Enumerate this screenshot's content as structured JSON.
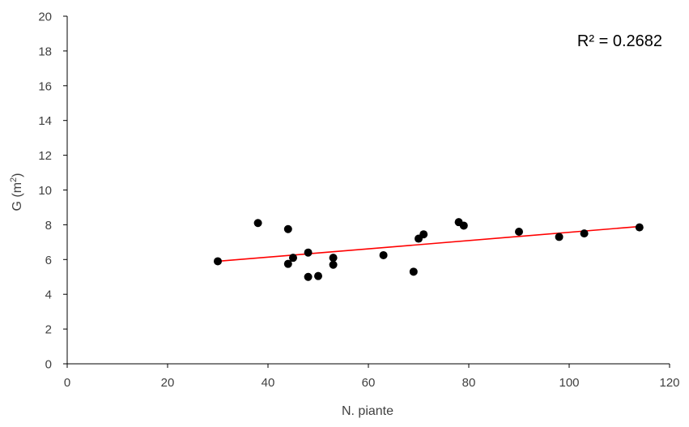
{
  "chart_data": {
    "type": "scatter",
    "title": "",
    "xlabel": "N. piante",
    "ylabel": "G (m²)",
    "xlim": [
      0,
      120
    ],
    "ylim": [
      0,
      20
    ],
    "x_ticks": [
      0,
      20,
      40,
      60,
      80,
      100,
      120
    ],
    "y_ticks": [
      0,
      2,
      4,
      6,
      8,
      10,
      12,
      14,
      16,
      18,
      20
    ],
    "grid": false,
    "legend": "none",
    "annotation": "R² = 0.2682",
    "colors": {
      "points": "#000000",
      "trendline": "#ff0000",
      "axis": "#000000",
      "text": "#404040"
    },
    "points": [
      {
        "x": 30,
        "y": 5.9
      },
      {
        "x": 38,
        "y": 8.1
      },
      {
        "x": 44,
        "y": 7.75
      },
      {
        "x": 44,
        "y": 5.75
      },
      {
        "x": 45,
        "y": 6.1
      },
      {
        "x": 48,
        "y": 6.4
      },
      {
        "x": 48,
        "y": 5.0
      },
      {
        "x": 50,
        "y": 5.05
      },
      {
        "x": 53,
        "y": 6.1
      },
      {
        "x": 53,
        "y": 5.7
      },
      {
        "x": 63,
        "y": 6.25
      },
      {
        "x": 69,
        "y": 5.3
      },
      {
        "x": 70,
        "y": 7.2
      },
      {
        "x": 71,
        "y": 7.45
      },
      {
        "x": 78,
        "y": 8.15
      },
      {
        "x": 79,
        "y": 7.95
      },
      {
        "x": 90,
        "y": 7.6
      },
      {
        "x": 98,
        "y": 7.3
      },
      {
        "x": 103,
        "y": 7.5
      },
      {
        "x": 114,
        "y": 7.85
      }
    ],
    "trendline": {
      "type": "linear",
      "x": [
        30,
        114
      ],
      "y": [
        5.9,
        7.9
      ]
    }
  }
}
